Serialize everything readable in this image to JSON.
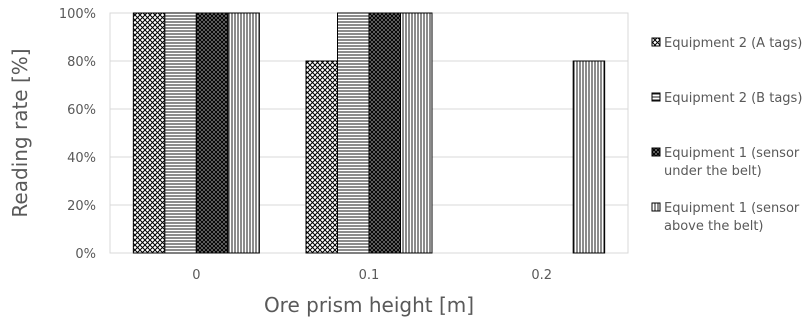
{
  "chart_data": {
    "type": "bar",
    "title": "",
    "xlabel": "Ore prism height [m]",
    "ylabel": "Reading rate [%]",
    "categories": [
      "0",
      "0.1",
      "0.2"
    ],
    "ylim": [
      0,
      100
    ],
    "yticks": [
      "0%",
      "20%",
      "40%",
      "60%",
      "80%",
      "100%"
    ],
    "grid": true,
    "legend_position": "right",
    "series": [
      {
        "name": "Equipment 2 (A tags)",
        "values": [
          100,
          80,
          0
        ],
        "pattern": "crosshatch"
      },
      {
        "name": "Equipment 2 (B tags)",
        "values": [
          100,
          100,
          0
        ],
        "pattern": "horizontal"
      },
      {
        "name": "Equipment 1 (sensor under the belt)",
        "legend_lines": [
          "Equipment 1 (sensor",
          "under the belt)"
        ],
        "values": [
          100,
          100,
          0
        ],
        "pattern": "dense-crosshatch"
      },
      {
        "name": "Equipment 1 (sensor above the belt)",
        "legend_lines": [
          "Equipment 1 (sensor",
          "above the belt)"
        ],
        "values": [
          100,
          100,
          80
        ],
        "pattern": "vertical"
      }
    ]
  }
}
